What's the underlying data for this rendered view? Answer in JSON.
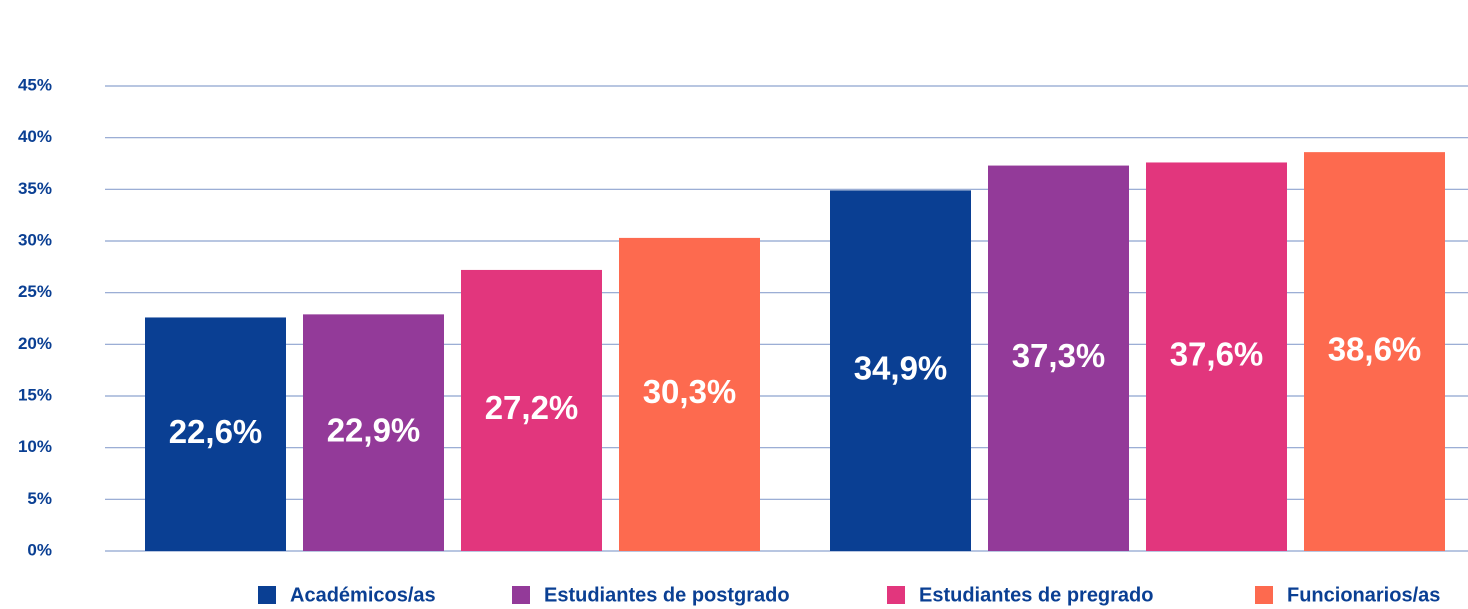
{
  "chart_data": {
    "type": "bar",
    "categories": [
      null,
      null
    ],
    "series": [
      {
        "name": "Académicos/as",
        "color": "#0a3f93",
        "values": [
          22.6,
          34.9
        ],
        "value_labels": [
          "22,6%",
          "34,9%"
        ]
      },
      {
        "name": "Estudiantes de postgrado",
        "color": "#933a99",
        "values": [
          22.9,
          37.3
        ],
        "value_labels": [
          "22,9%",
          "37,3%"
        ]
      },
      {
        "name": "Estudiantes de pregrado",
        "color": "#e2367d",
        "values": [
          27.2,
          37.6
        ],
        "value_labels": [
          "27,2%",
          "37,6%"
        ]
      },
      {
        "name": "Funcionarios/as",
        "color": "#fd6a4f",
        "values": [
          30.3,
          38.6
        ],
        "value_labels": [
          "30,3%",
          "38,6%"
        ]
      }
    ],
    "ylim": [
      0,
      45
    ],
    "yticks": [
      {
        "value": 0,
        "label": "0%"
      },
      {
        "value": 5,
        "label": "5%"
      },
      {
        "value": 10,
        "label": "10%"
      },
      {
        "value": 15,
        "label": "15%"
      },
      {
        "value": 20,
        "label": "20%"
      },
      {
        "value": 25,
        "label": "25%"
      },
      {
        "value": 30,
        "label": "30%"
      },
      {
        "value": 35,
        "label": "35%"
      },
      {
        "value": 40,
        "label": "40%"
      },
      {
        "value": 45,
        "label": "45%"
      }
    ],
    "grid": true
  }
}
